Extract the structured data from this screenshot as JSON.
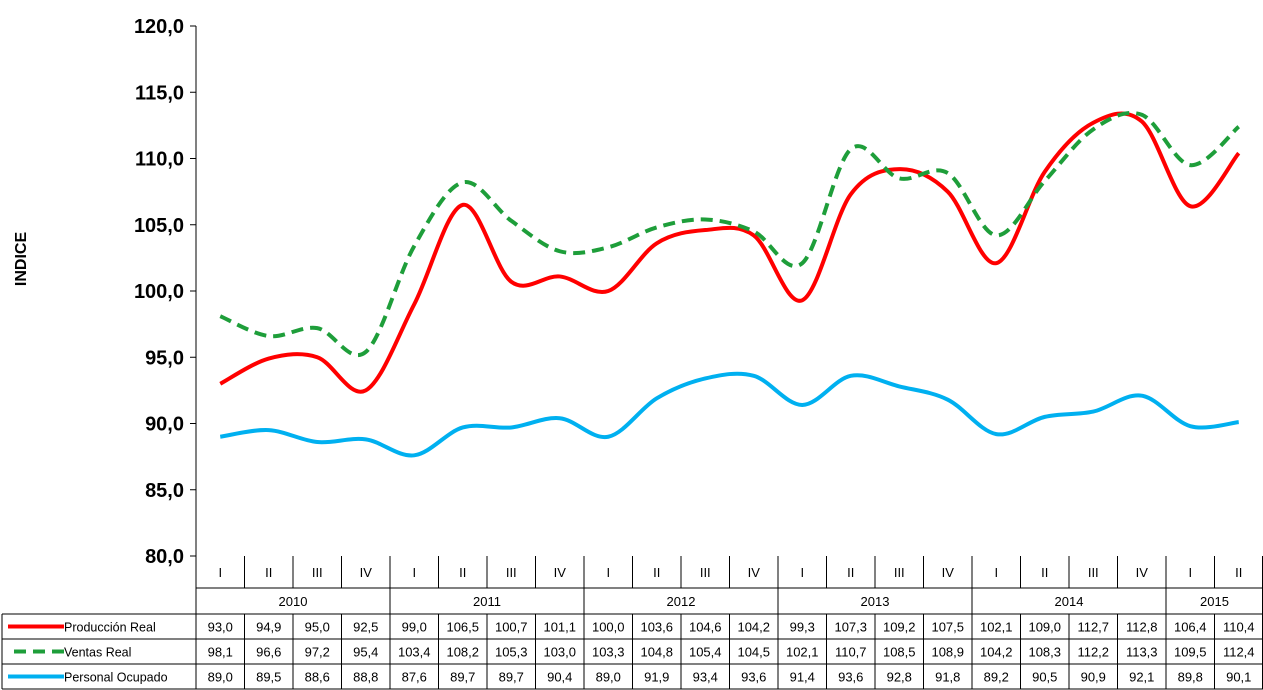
{
  "chart_data": {
    "type": "line",
    "ylabel": "INDICE",
    "ylim": [
      80,
      120
    ],
    "yticks": [
      "80,0",
      "85,0",
      "90,0",
      "95,0",
      "100,0",
      "105,0",
      "110,0",
      "115,0",
      "120,0"
    ],
    "quarters": [
      "I",
      "II",
      "III",
      "IV",
      "I",
      "II",
      "III",
      "IV",
      "I",
      "II",
      "III",
      "IV",
      "I",
      "II",
      "III",
      "IV",
      "I",
      "II",
      "III",
      "IV",
      "I",
      "II"
    ],
    "years": [
      {
        "label": "2010",
        "span": 4
      },
      {
        "label": "2011",
        "span": 4
      },
      {
        "label": "2012",
        "span": 4
      },
      {
        "label": "2013",
        "span": 4
      },
      {
        "label": "2014",
        "span": 4
      },
      {
        "label": "2015",
        "span": 2
      }
    ],
    "series": [
      {
        "name": "Producción Real",
        "color": "#ff0000",
        "dash": "solid",
        "values": [
          93.0,
          94.9,
          95.0,
          92.5,
          99.0,
          106.5,
          100.7,
          101.1,
          100.0,
          103.6,
          104.6,
          104.2,
          99.3,
          107.3,
          109.2,
          107.5,
          102.1,
          109.0,
          112.7,
          112.8,
          106.4,
          110.4
        ],
        "labels": [
          "93,0",
          "94,9",
          "95,0",
          "92,5",
          "99,0",
          "106,5",
          "100,7",
          "101,1",
          "100,0",
          "103,6",
          "104,6",
          "104,2",
          "99,3",
          "107,3",
          "109,2",
          "107,5",
          "102,1",
          "109,0",
          "112,7",
          "112,8",
          "106,4",
          "110,4"
        ]
      },
      {
        "name": "Ventas Real",
        "color": "#1e9e3a",
        "dash": "dashed",
        "values": [
          98.1,
          96.6,
          97.2,
          95.4,
          103.4,
          108.2,
          105.3,
          103.0,
          103.3,
          104.8,
          105.4,
          104.5,
          102.1,
          110.7,
          108.5,
          108.9,
          104.2,
          108.3,
          112.2,
          113.3,
          109.5,
          112.4
        ],
        "labels": [
          "98,1",
          "96,6",
          "97,2",
          "95,4",
          "103,4",
          "108,2",
          "105,3",
          "103,0",
          "103,3",
          "104,8",
          "105,4",
          "104,5",
          "102,1",
          "110,7",
          "108,5",
          "108,9",
          "104,2",
          "108,3",
          "112,2",
          "113,3",
          "109,5",
          "112,4"
        ]
      },
      {
        "name": "Personal Ocupado",
        "color": "#00b0f0",
        "dash": "solid",
        "values": [
          89.0,
          89.5,
          88.6,
          88.8,
          87.6,
          89.7,
          89.7,
          90.4,
          89.0,
          91.9,
          93.4,
          93.6,
          91.4,
          93.6,
          92.8,
          91.8,
          89.2,
          90.5,
          90.9,
          92.1,
          89.8,
          90.1
        ],
        "labels": [
          "89,0",
          "89,5",
          "88,6",
          "88,8",
          "87,6",
          "89,7",
          "89,7",
          "90,4",
          "89,0",
          "91,9",
          "93,4",
          "93,6",
          "91,4",
          "93,6",
          "92,8",
          "91,8",
          "89,2",
          "90,5",
          "90,9",
          "92,1",
          "89,8",
          "90,1"
        ]
      }
    ]
  }
}
